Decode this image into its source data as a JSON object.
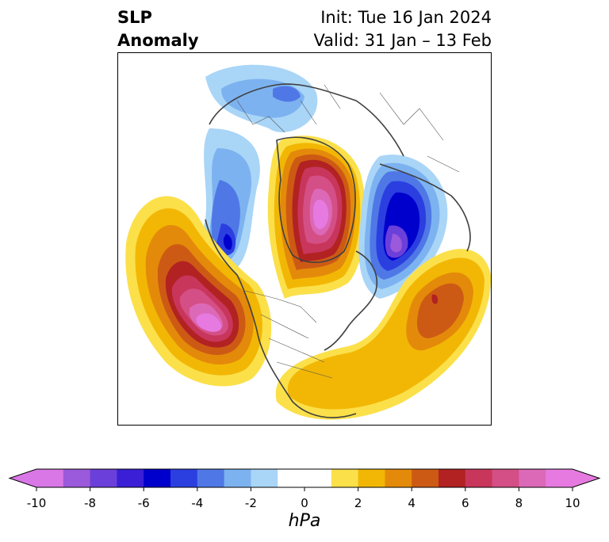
{
  "title": {
    "left_line1": "SLP",
    "left_line2": "Anomaly",
    "init": "Init: Tue 16 Jan 2024",
    "valid": "Valid: 31 Jan – 13 Feb"
  },
  "colorbar": {
    "min": -10,
    "max": 10,
    "step": 1,
    "extend": "both",
    "colors": [
      "#d977e6",
      "#9b59db",
      "#6b3fd9",
      "#3a1fd6",
      "#0000cc",
      "#2b3fe0",
      "#4f78e6",
      "#7cb2f0",
      "#a9d5f7",
      "#ffffff",
      "#ffffff",
      "#fbe04a",
      "#f2b705",
      "#e48a0a",
      "#cd5a14",
      "#b22222",
      "#c8365c",
      "#d44f85",
      "#dc69b7",
      "#e67ae0"
    ],
    "extend_low_color": "#d977e6",
    "extend_high_color": "#e67ae0",
    "tick_values": [
      -10,
      -8,
      -6,
      -4,
      -2,
      0,
      2,
      4,
      6,
      8,
      10
    ],
    "tick_labels": [
      "-10",
      "-8",
      "-6",
      "-4",
      "-2",
      "0",
      "2",
      "4",
      "6",
      "8",
      "10"
    ],
    "unit": "hPa"
  }
}
